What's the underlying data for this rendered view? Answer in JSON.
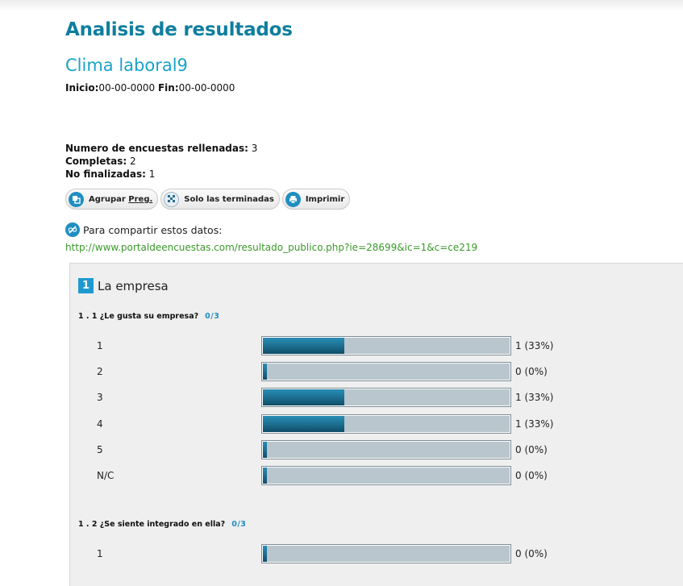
{
  "header": {
    "title": "Analisis de resultados",
    "survey_name": "Clima laboral9",
    "start_label": "Inicio:",
    "start_value": "00-00-0000",
    "end_label": "Fin:",
    "end_value": "00-00-0000"
  },
  "stats": {
    "filled_label": "Numero de encuestas rellenadas:",
    "filled_value": "3",
    "complete_label": "Completas:",
    "complete_value": "2",
    "unfinished_label": "No finalizadas:",
    "unfinished_value": "1"
  },
  "toolbar": {
    "group_prefix": "Agrupar ",
    "group_link": "Preg.",
    "only_finished": "Solo las terminadas",
    "print": "Imprimir"
  },
  "share": {
    "text": "Para compartir estos datos:",
    "url": "http://www.portaldeencuestas.com/resultado_publico.php?ie=28699&ic=1&c=ce219"
  },
  "section": {
    "number": "1",
    "title": "La empresa"
  },
  "questions": [
    {
      "title": "1 . 1 ¿Le gusta su empresa?",
      "count": "0/3",
      "rows": [
        {
          "label": "1",
          "fraction": 0.33,
          "value": "1 (33%)"
        },
        {
          "label": "2",
          "fraction": 0.0,
          "value": "0 (0%)"
        },
        {
          "label": "3",
          "fraction": 0.33,
          "value": "1 (33%)"
        },
        {
          "label": "4",
          "fraction": 0.33,
          "value": "1 (33%)"
        },
        {
          "label": "5",
          "fraction": 0.0,
          "value": "0 (0%)"
        },
        {
          "label": "N/C",
          "fraction": 0.0,
          "value": "0 (0%)"
        }
      ]
    },
    {
      "title": "1 . 2 ¿Se siente integrado en ella?",
      "count": "0/3",
      "rows": [
        {
          "label": "1",
          "fraction": 0.0,
          "value": "0 (0%)"
        }
      ]
    }
  ],
  "colors": {
    "title": "#0f7e9e",
    "accent": "#1e9ad0",
    "link": "#3a9a2a",
    "bar_fill": "#1d6f92",
    "bar_track": "#b9c6cd"
  }
}
